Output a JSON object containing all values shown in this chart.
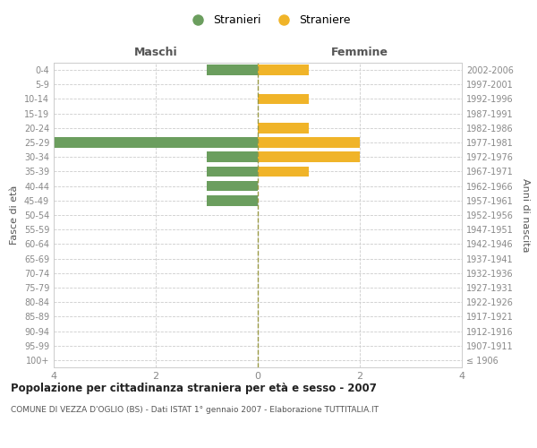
{
  "age_groups": [
    "100+",
    "95-99",
    "90-94",
    "85-89",
    "80-84",
    "75-79",
    "70-74",
    "65-69",
    "60-64",
    "55-59",
    "50-54",
    "45-49",
    "40-44",
    "35-39",
    "30-34",
    "25-29",
    "20-24",
    "15-19",
    "10-14",
    "5-9",
    "0-4"
  ],
  "birth_years": [
    "≤ 1906",
    "1907-1911",
    "1912-1916",
    "1917-1921",
    "1922-1926",
    "1927-1931",
    "1932-1936",
    "1937-1941",
    "1942-1946",
    "1947-1951",
    "1952-1956",
    "1957-1961",
    "1962-1966",
    "1967-1971",
    "1972-1976",
    "1977-1981",
    "1982-1986",
    "1987-1991",
    "1992-1996",
    "1997-2001",
    "2002-2006"
  ],
  "males": [
    0,
    0,
    0,
    0,
    0,
    0,
    0,
    0,
    0,
    0,
    0,
    1,
    1,
    1,
    1,
    4,
    0,
    0,
    0,
    0,
    1
  ],
  "females": [
    0,
    0,
    0,
    0,
    0,
    0,
    0,
    0,
    0,
    0,
    0,
    0,
    0,
    1,
    2,
    2,
    1,
    0,
    1,
    0,
    1
  ],
  "male_color": "#6b9e5e",
  "female_color": "#f0b429",
  "male_label": "Stranieri",
  "female_label": "Straniere",
  "title": "Popolazione per cittadinanza straniera per età e sesso - 2007",
  "subtitle": "COMUNE DI VEZZA D'OGLIO (BS) - Dati ISTAT 1° gennaio 2007 - Elaborazione TUTTITALIA.IT",
  "xlabel_left": "Maschi",
  "xlabel_right": "Femmine",
  "ylabel_left": "Fasce di età",
  "ylabel_right": "Anni di nascita",
  "xlim": 4,
  "background_color": "#ffffff",
  "grid_color": "#cccccc",
  "tick_color": "#888888",
  "border_color": "#cccccc"
}
